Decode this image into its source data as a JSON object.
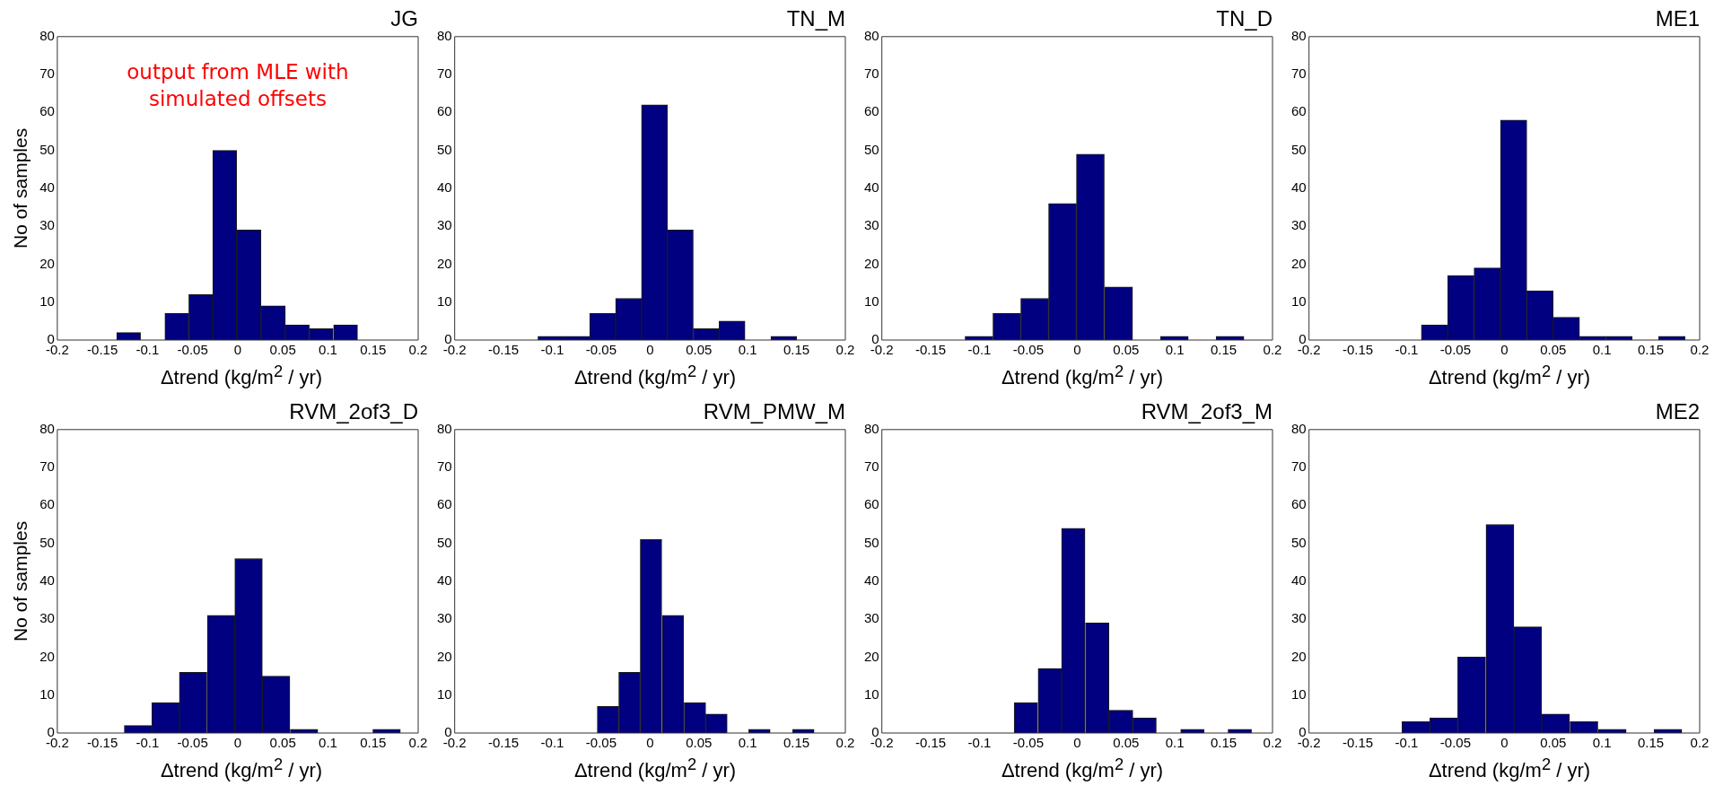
{
  "chart_data": [
    {
      "type": "histogram",
      "title": "JG",
      "ylabel": "No of samples",
      "xlabel": "Δtrend (kg/m$^{2}$ / yr)",
      "annotations": [
        "output from MLE with simulated offsets"
      ],
      "color": "#000080",
      "bins": [
        -0.134,
        -0.108,
        -0.081,
        -0.054,
        -0.028,
        -0.001,
        0.026,
        0.053,
        0.079,
        0.106,
        0.133
      ],
      "values": [
        2,
        0,
        7,
        12,
        50,
        29,
        9,
        4,
        3,
        4
      ],
      "xlim": [
        -0.2,
        0.2
      ],
      "xticks": [
        -0.2,
        -0.15,
        -0.1,
        -0.05,
        0,
        0.05,
        0.1,
        0.15,
        0.2
      ],
      "ylim": [
        0,
        80
      ],
      "yticks": [
        0,
        10,
        20,
        30,
        40,
        50,
        60,
        70,
        80
      ]
    },
    {
      "type": "histogram",
      "title": "TN_M",
      "xlabel": "Δtrend (kg/m$^{2}$ / yr)",
      "color": "#000080",
      "bins": [
        -0.115,
        -0.088,
        -0.062,
        -0.035,
        -0.009,
        0.018,
        0.044,
        0.071,
        0.097,
        0.124,
        0.15
      ],
      "values": [
        1,
        1,
        7,
        11,
        62,
        29,
        3,
        5,
        0,
        1
      ],
      "xlim": [
        -0.2,
        0.2
      ],
      "xticks": [
        -0.2,
        -0.15,
        -0.1,
        -0.05,
        0,
        0.05,
        0.1,
        0.15,
        0.2
      ],
      "ylim": [
        0,
        80
      ],
      "yticks": [
        0,
        10,
        20,
        30,
        40,
        50,
        60,
        70,
        80
      ]
    },
    {
      "type": "histogram",
      "title": "TN_D",
      "xlabel": "Δtrend (kg/m$^{2}$ / yr)",
      "color": "#000080",
      "bins": [
        -0.115,
        -0.086,
        -0.058,
        -0.029,
        -0.001,
        0.028,
        0.057,
        0.085,
        0.114,
        0.142,
        0.171
      ],
      "values": [
        1,
        7,
        11,
        36,
        49,
        14,
        0,
        1,
        0,
        1
      ],
      "xlim": [
        -0.2,
        0.2
      ],
      "xticks": [
        -0.2,
        -0.15,
        -0.1,
        -0.05,
        0,
        0.05,
        0.1,
        0.15,
        0.2
      ],
      "ylim": [
        0,
        80
      ],
      "yticks": [
        0,
        10,
        20,
        30,
        40,
        50,
        60,
        70,
        80
      ]
    },
    {
      "type": "histogram",
      "title": "ME1",
      "xlabel": "Δtrend (kg/m$^{2}$ / yr)",
      "color": "#000080",
      "bins": [
        -0.085,
        -0.058,
        -0.031,
        -0.004,
        0.023,
        0.05,
        0.077,
        0.104,
        0.131,
        0.158,
        0.185
      ],
      "values": [
        4,
        17,
        19,
        58,
        13,
        6,
        1,
        1,
        0,
        1
      ],
      "xlim": [
        -0.2,
        0.2
      ],
      "xticks": [
        -0.2,
        -0.15,
        -0.1,
        -0.05,
        0,
        0.05,
        0.1,
        0.15,
        0.2
      ],
      "ylim": [
        0,
        80
      ],
      "yticks": [
        0,
        10,
        20,
        30,
        40,
        50,
        60,
        70,
        80
      ]
    },
    {
      "type": "histogram",
      "title": "RVM_2of3_D",
      "ylabel": "No of samples",
      "xlabel": "Δtrend (kg/m$^{2}$ / yr)",
      "color": "#000080",
      "bins": [
        -0.126,
        -0.095,
        -0.065,
        -0.034,
        -0.003,
        0.027,
        0.058,
        0.089,
        0.119,
        0.15,
        0.18
      ],
      "values": [
        2,
        8,
        16,
        31,
        46,
        15,
        1,
        0,
        0,
        1
      ],
      "xlim": [
        -0.2,
        0.2
      ],
      "xticks": [
        -0.2,
        -0.15,
        -0.1,
        -0.05,
        0,
        0.05,
        0.1,
        0.15,
        0.2
      ],
      "ylim": [
        0,
        80
      ],
      "yticks": [
        0,
        10,
        20,
        30,
        40,
        50,
        60,
        70,
        80
      ]
    },
    {
      "type": "histogram",
      "title": "RVM_PMW_M",
      "xlabel": "Δtrend (kg/m$^{2}$ / yr)",
      "color": "#000080",
      "bins": [
        -0.054,
        -0.032,
        -0.01,
        0.012,
        0.035,
        0.057,
        0.079,
        0.101,
        0.123,
        0.146,
        0.168
      ],
      "values": [
        7,
        16,
        51,
        31,
        8,
        5,
        0,
        1,
        0,
        1
      ],
      "xlim": [
        -0.2,
        0.2
      ],
      "xticks": [
        -0.2,
        -0.15,
        -0.1,
        -0.05,
        0,
        0.05,
        0.1,
        0.15,
        0.2
      ],
      "ylim": [
        0,
        80
      ],
      "yticks": [
        0,
        10,
        20,
        30,
        40,
        50,
        60,
        70,
        80
      ]
    },
    {
      "type": "histogram",
      "title": "RVM_2of3_M",
      "xlabel": "Δtrend (kg/m$^{2}$ / yr)",
      "color": "#000080",
      "bins": [
        -0.065,
        -0.04,
        -0.016,
        0.008,
        0.033,
        0.057,
        0.081,
        0.106,
        0.13,
        0.154,
        0.179
      ],
      "values": [
        8,
        17,
        54,
        29,
        6,
        4,
        0,
        1,
        0,
        1
      ],
      "xlim": [
        -0.2,
        0.2
      ],
      "xticks": [
        -0.2,
        -0.15,
        -0.1,
        -0.05,
        0,
        0.05,
        0.1,
        0.15,
        0.2
      ],
      "ylim": [
        0,
        80
      ],
      "yticks": [
        0,
        10,
        20,
        30,
        40,
        50,
        60,
        70,
        80
      ]
    },
    {
      "type": "histogram",
      "title": "ME2",
      "xlabel": "Δtrend (kg/m$^{2}$ / yr)",
      "color": "#000080",
      "bins": [
        -0.105,
        -0.076,
        -0.048,
        -0.019,
        0.01,
        0.038,
        0.067,
        0.096,
        0.125,
        0.153,
        0.182
      ],
      "values": [
        3,
        4,
        20,
        55,
        28,
        5,
        3,
        1,
        0,
        1
      ],
      "xlim": [
        -0.2,
        0.2
      ],
      "xticks": [
        -0.2,
        -0.15,
        -0.1,
        -0.05,
        0,
        0.05,
        0.1,
        0.15,
        0.2
      ],
      "ylim": [
        0,
        80
      ],
      "yticks": [
        0,
        10,
        20,
        30,
        40,
        50,
        60,
        70,
        80
      ]
    }
  ]
}
